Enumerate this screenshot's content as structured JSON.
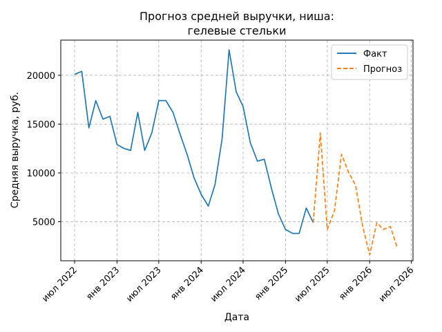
{
  "chart_data": {
    "type": "line",
    "title_lines": [
      "Прогноз средней выручки, ниша:",
      "гелевые стельки"
    ],
    "xlabel": "Дата",
    "ylabel": "Средняя выручка, руб.",
    "x_ticks": [
      "июл 2022",
      "янв 2023",
      "июл 2023",
      "янв 2024",
      "июл 2024",
      "янв 2025",
      "июл 2025",
      "янв 2026",
      "июл 2026"
    ],
    "y_ticks": [
      5000,
      10000,
      15000,
      20000
    ],
    "xlim": [
      "2022-05-02",
      "2026-07-08"
    ],
    "ylim": [
      1000,
      23600
    ],
    "grid": true,
    "legend_position": "top-right",
    "series": [
      {
        "name": "Факт",
        "color": "#1f77b4",
        "style": "solid",
        "x": [
          "2022-07-01",
          "2022-08-01",
          "2022-09-01",
          "2022-10-01",
          "2022-11-01",
          "2022-12-01",
          "2023-01-01",
          "2023-02-01",
          "2023-03-01",
          "2023-04-01",
          "2023-05-01",
          "2023-06-01",
          "2023-07-01",
          "2023-08-01",
          "2023-09-01",
          "2023-10-01",
          "2023-11-01",
          "2023-12-01",
          "2024-01-01",
          "2024-02-01",
          "2024-03-01",
          "2024-04-01",
          "2024-05-01",
          "2024-06-01",
          "2024-07-01",
          "2024-08-01",
          "2024-09-01",
          "2024-10-01",
          "2024-11-01",
          "2024-12-01",
          "2025-01-01",
          "2025-02-01",
          "2025-03-01",
          "2025-04-01",
          "2025-05-01"
        ],
        "values": [
          20100,
          20400,
          14600,
          17400,
          15500,
          15800,
          12900,
          12500,
          12300,
          16200,
          12300,
          14100,
          17400,
          17400,
          16200,
          14000,
          11900,
          9500,
          7800,
          6600,
          8800,
          13500,
          22600,
          18300,
          16800,
          13100,
          11200,
          11400,
          8400,
          5800,
          4200,
          3800,
          3800,
          6400,
          4900
        ]
      },
      {
        "name": "Прогноз",
        "color": "#ff7f0e",
        "style": "dashed",
        "x": [
          "2025-05-01",
          "2025-06-01",
          "2025-07-01",
          "2025-08-01",
          "2025-09-01",
          "2025-10-01",
          "2025-11-01",
          "2025-12-01",
          "2026-01-01",
          "2026-02-01",
          "2026-03-01",
          "2026-04-01",
          "2026-05-01"
        ],
        "values": [
          4900,
          14100,
          4200,
          6100,
          11900,
          10100,
          8700,
          4600,
          1600,
          4900,
          4200,
          4500,
          2300
        ]
      }
    ]
  }
}
